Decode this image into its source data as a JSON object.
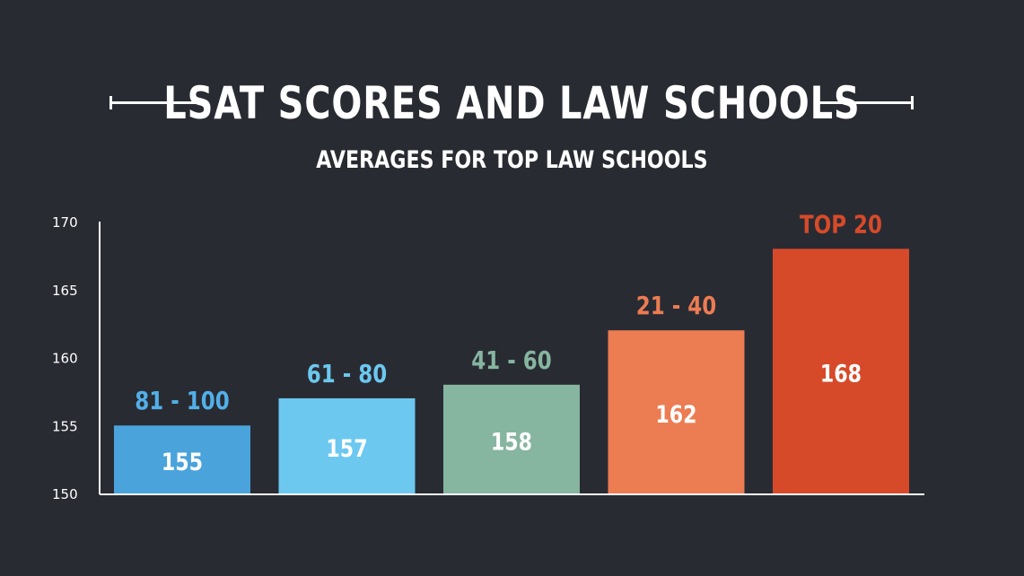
{
  "header": {
    "title": "LSAT SCORES AND LAW SCHOOLS",
    "subtitle": "AVERAGES FOR TOP LAW SCHOOLS"
  },
  "chart_data": {
    "type": "bar",
    "title": "LSAT SCORES AND LAW SCHOOLS",
    "subtitle": "AVERAGES FOR TOP LAW SCHOOLS",
    "xlabel": "",
    "ylabel": "",
    "ylim": [
      150,
      170
    ],
    "yticks": [
      "170",
      "165",
      "160",
      "155",
      "150"
    ],
    "categories": [
      "81 - 100",
      "61 - 80",
      "41 - 60",
      "21 - 40",
      "TOP 20"
    ],
    "values": [
      155,
      157,
      158,
      162,
      168
    ],
    "value_labels": [
      "155",
      "157",
      "158",
      "162",
      "168"
    ],
    "bar_colors": [
      "#4aa3db",
      "#6cc8ef",
      "#86b5a0",
      "#ec7c52",
      "#d64a2a"
    ],
    "label_colors": [
      "#52b0e8",
      "#6cc8ef",
      "#86b5a0",
      "#ec7c52",
      "#d64a2a"
    ],
    "grid": false,
    "legend": "none"
  }
}
